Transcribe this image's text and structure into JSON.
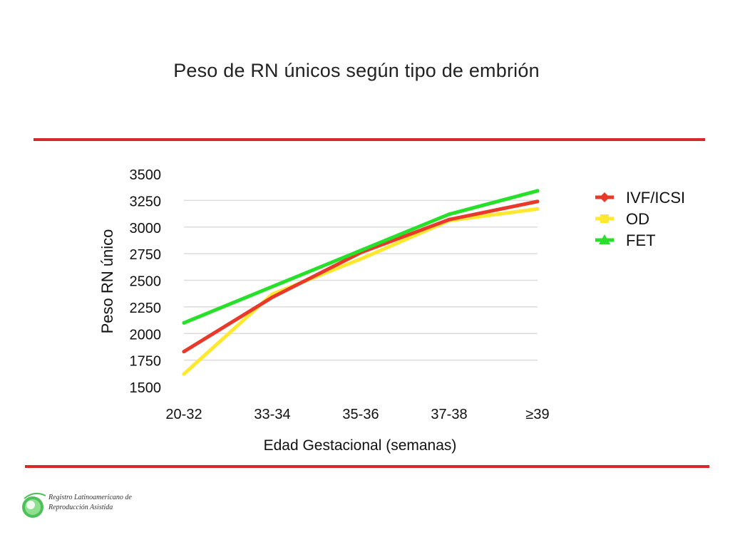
{
  "slide": {
    "title": "Peso de RN únicos según tipo de embrión"
  },
  "colors": {
    "rule": "#d42a2a",
    "grid": "#dcdcdc",
    "ivf": "#e8392a",
    "od": "#ffe82e",
    "fet": "#26e02a"
  },
  "chart_data": {
    "type": "line",
    "title": "",
    "xlabel": "Edad Gestacional (semanas)",
    "ylabel": "Peso RN único",
    "ylim": [
      1500,
      3500
    ],
    "yticks": [
      "3500",
      "3250",
      "3000",
      "2750",
      "2500",
      "2250",
      "2000",
      "1750",
      "1500"
    ],
    "categories": [
      "20-32",
      "33-34",
      "35-36",
      "37-38",
      "≥39"
    ],
    "grid": true,
    "legend": "top-right",
    "series": [
      {
        "name": "IVF/ICSI",
        "color": "#e8392a",
        "marker": "diamond",
        "values": [
          1830,
          2340,
          2760,
          3070,
          3240
        ]
      },
      {
        "name": "OD",
        "color": "#ffe82e",
        "marker": "square",
        "values": [
          1620,
          2370,
          2700,
          3060,
          3170
        ]
      },
      {
        "name": "FET",
        "color": "#26e02a",
        "marker": "triangle",
        "values": [
          2100,
          2440,
          2780,
          3120,
          3340
        ]
      }
    ]
  },
  "logo": {
    "line1": "Registro Latinoamericano de",
    "line2": "Reproducción Asistida"
  }
}
